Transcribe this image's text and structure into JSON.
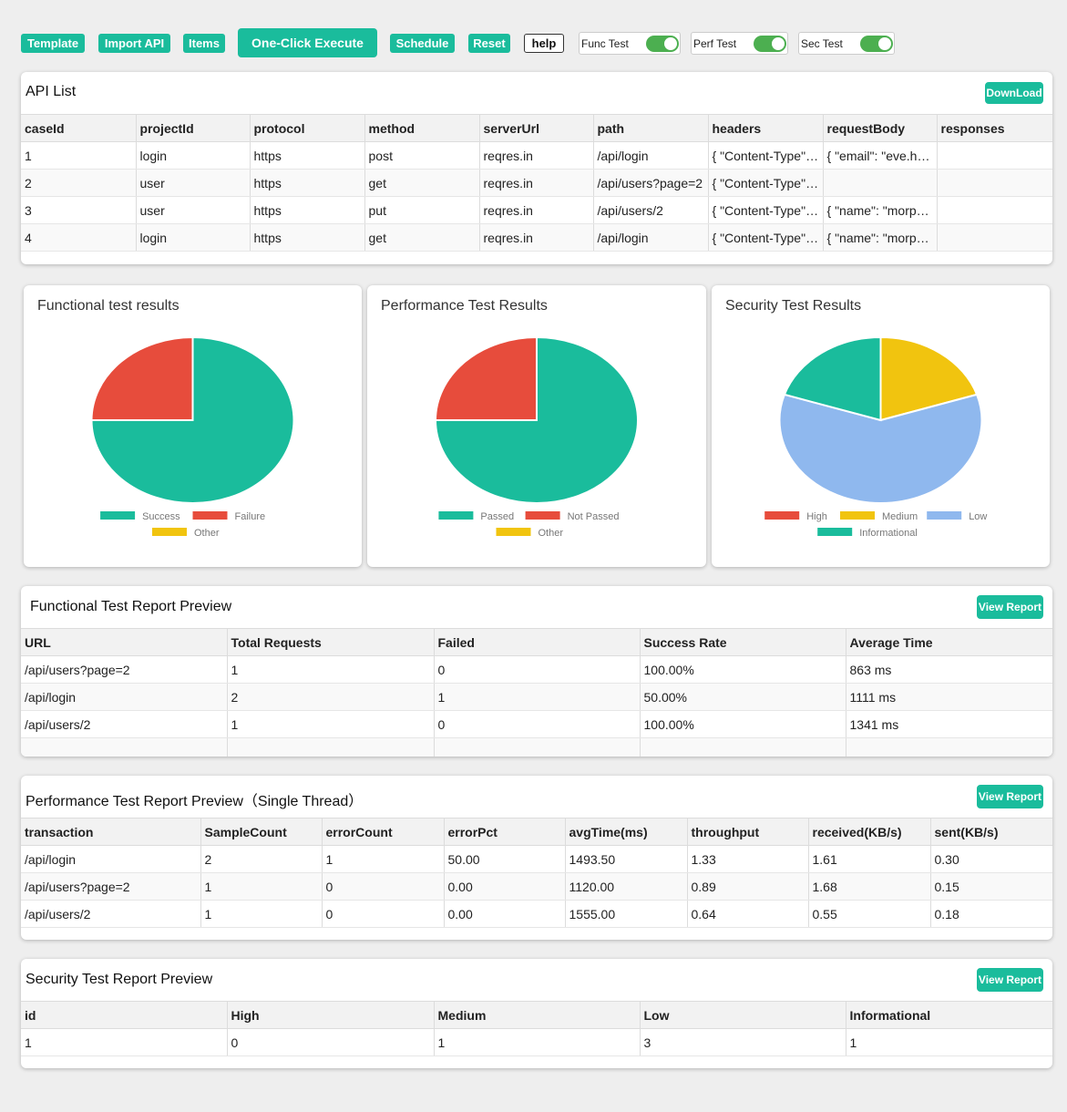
{
  "toolbar": {
    "template": "Template",
    "import_api": "Import API",
    "items": "Items",
    "one_click": "One-Click Execute",
    "schedule": "Schedule",
    "reset": "Reset",
    "help": "help",
    "func_test": "Func Test",
    "perf_test": "Perf Test",
    "sec_test": "Sec Test"
  },
  "toggles": {
    "func_test": true,
    "perf_test": true,
    "sec_test": true
  },
  "api_list": {
    "title": "API List",
    "download": "DownLoad",
    "columns": [
      "caseId",
      "projectId",
      "protocol",
      "method",
      "serverUrl",
      "path",
      "headers",
      "requestBody",
      "responses"
    ],
    "rows": [
      [
        "1",
        "login",
        "https",
        "post",
        "reqres.in",
        "/api/login",
        "{ \"Content-Type\": \"application/json\" }",
        "{ \"email\": \"eve.holt@reqres.in\" }",
        ""
      ],
      [
        "2",
        "user",
        "https",
        "get",
        "reqres.in",
        "/api/users?page=2",
        "{ \"Content-Type\": \"application/json\" }",
        "",
        ""
      ],
      [
        "3",
        "user",
        "https",
        "put",
        "reqres.in",
        "/api/users/2",
        "{ \"Content-Type\": \"application/json\" }",
        "{ \"name\": \"morpheus\" }",
        ""
      ],
      [
        "4",
        "login",
        "https",
        "get",
        "reqres.in",
        "/api/login",
        "{ \"Content-Type\": \"application/json\" }",
        "{ \"name\": \"morpheus\" }",
        ""
      ]
    ]
  },
  "colors": {
    "accent": "#1abc9c",
    "success": "#1abc9c",
    "failure": "#e74c3c",
    "other": "#f1c40f",
    "high": "#e74c3c",
    "medium": "#f1c40f",
    "low": "#8fb8ee",
    "informational": "#1abc9c"
  },
  "chart_data": [
    {
      "type": "pie",
      "title": "Functional test results",
      "labels": [
        "Success",
        "Failure",
        "Other"
      ],
      "values": [
        3,
        1,
        0
      ],
      "colors": [
        "#1abc9c",
        "#e74c3c",
        "#f1c40f"
      ]
    },
    {
      "type": "pie",
      "title": "Performance Test Results",
      "labels": [
        "Passed",
        "Not Passed",
        "Other"
      ],
      "values": [
        3,
        1,
        0
      ],
      "colors": [
        "#1abc9c",
        "#e74c3c",
        "#f1c40f"
      ]
    },
    {
      "type": "pie",
      "title": "Security Test Results",
      "labels": [
        "High",
        "Medium",
        "Low",
        "Informational"
      ],
      "values": [
        0,
        1,
        3,
        1
      ],
      "colors": [
        "#e74c3c",
        "#f1c40f",
        "#8fb8ee",
        "#1abc9c"
      ]
    }
  ],
  "functional_report": {
    "title": "Functional Test Report Preview",
    "view": "View Report",
    "columns": [
      "URL",
      "Total Requests",
      "Failed",
      "Success Rate",
      "Average Time"
    ],
    "rows": [
      [
        "/api/users?page=2",
        "1",
        "0",
        "100.00%",
        "863 ms"
      ],
      [
        "/api/login",
        "2",
        "1",
        "50.00%",
        "1111 ms"
      ],
      [
        "/api/users/2",
        "1",
        "0",
        "100.00%",
        "1341 ms"
      ]
    ]
  },
  "performance_report": {
    "title": "Performance Test Report Preview（Single Thread）",
    "view": "View Report",
    "columns": [
      "transaction",
      "SampleCount",
      "errorCount",
      "errorPct",
      "avgTime(ms)",
      "throughput",
      "received(KB/s)",
      "sent(KB/s)"
    ],
    "rows": [
      [
        "/api/login",
        "2",
        "1",
        "50.00",
        "1493.50",
        "1.33",
        "1.61",
        "0.30"
      ],
      [
        "/api/users?page=2",
        "1",
        "0",
        "0.00",
        "1120.00",
        "0.89",
        "1.68",
        "0.15"
      ],
      [
        "/api/users/2",
        "1",
        "0",
        "0.00",
        "1555.00",
        "0.64",
        "0.55",
        "0.18"
      ]
    ]
  },
  "security_report": {
    "title": "Security Test Report Preview",
    "view": "View Report",
    "columns": [
      "id",
      "High",
      "Medium",
      "Low",
      "Informational"
    ],
    "rows": [
      [
        "1",
        "0",
        "1",
        "3",
        "1"
      ]
    ]
  }
}
